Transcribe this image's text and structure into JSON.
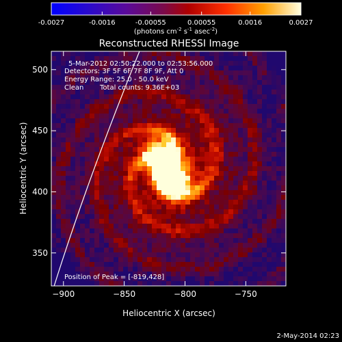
{
  "chart_data": {
    "type": "heatmap",
    "title": "Reconstructed RHESSI Image",
    "xlabel": "Heliocentric X (arcsec)",
    "ylabel": "Heliocentric Y (arcsec)",
    "xlim": [
      -910,
      -717
    ],
    "ylim": [
      323,
      515
    ],
    "xticks": [
      -900,
      -850,
      -800,
      -750
    ],
    "yticks": [
      350,
      400,
      450,
      500
    ],
    "colorbar": {
      "ticks": [
        -0.0027,
        -0.0016,
        -0.00055,
        0.00055,
        0.0016,
        0.0027
      ],
      "tick_labels": [
        "-0.0027",
        "-0.0016",
        "-0.00055",
        "0.00055",
        "0.0016",
        "0.0027"
      ],
      "unit_prefix": "(photons cm",
      "unit_exp1": "-2",
      "unit_mid": " s",
      "unit_exp2": "-1",
      "unit_mid2": " asec",
      "unit_exp3": "-2",
      "unit_suffix": ")",
      "range": [
        -0.0027,
        0.0027
      ]
    },
    "peak_x": -819,
    "peak_y": 428,
    "peak_value": 0.0027,
    "secondary_source_x": -807,
    "secondary_source_y": 407,
    "limb_x_at_bottom": -908,
    "limb_x_at_top": -837
  },
  "annotations": {
    "time_range": "5-Mar-2012 02:50:22.000 to 02:53:56.000",
    "detectors": "Detectors: 3F 5F 6F 7F 8F 9F, Att 0",
    "energy": "Energy Range: 25.0 - 50.0 keV",
    "clean_label": "Clean",
    "total_counts": "Total counts: 9.36E+03",
    "peak_position": "Position of Peak = [-819,428]"
  },
  "footer": {
    "date": "2-May-2014 02:23"
  },
  "colors": {
    "background": "#000000",
    "foreground": "#ffffff"
  }
}
